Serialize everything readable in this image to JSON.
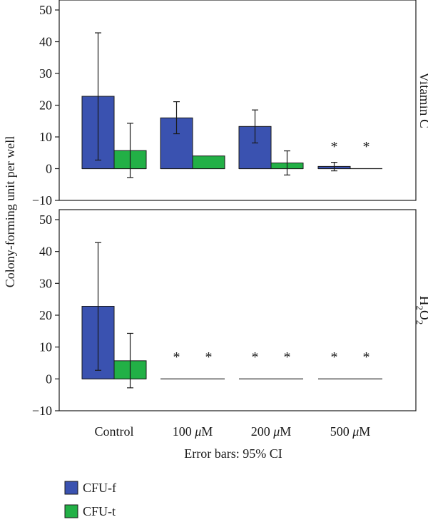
{
  "colors": {
    "cfu_f": "#3a52b0",
    "cfu_t": "#22b046",
    "axis": "#1a1a1a",
    "background": "#ffffff"
  },
  "legend": {
    "placement": "bottom-left",
    "entries": [
      "CFU-f",
      "CFU-t"
    ]
  },
  "chart_data": {
    "type": "bar",
    "ylabel": "Colony-forming unit per well",
    "xlabel": "Error bars: 95% CI",
    "categories": [
      "Control",
      "100 μM",
      "200 μM",
      "500 μM"
    ],
    "ylim": [
      -10,
      50
    ],
    "yticks": [
      -10,
      0,
      10,
      20,
      30,
      40,
      50
    ],
    "panels": [
      {
        "label": "Vitamin C",
        "series": [
          {
            "name": "CFU-f",
            "values": [
              22.8,
              16.0,
              13.3,
              0.7
            ],
            "ci_low": [
              2.7,
              11.0,
              8.1,
              -0.7
            ],
            "ci_high": [
              42.8,
              21.1,
              18.5,
              2.0
            ]
          },
          {
            "name": "CFU-t",
            "values": [
              5.7,
              4.0,
              1.8,
              0.0
            ],
            "ci_low": [
              -2.8,
              null,
              -2.0,
              null
            ],
            "ci_high": [
              14.3,
              null,
              5.6,
              null
            ]
          }
        ],
        "significance": [
          [
            false,
            false
          ],
          [
            false,
            false
          ],
          [
            false,
            false
          ],
          [
            true,
            true
          ]
        ]
      },
      {
        "label": "H2O2",
        "series": [
          {
            "name": "CFU-f",
            "values": [
              22.8,
              0,
              0,
              0
            ],
            "ci_low": [
              2.7,
              null,
              null,
              null
            ],
            "ci_high": [
              42.8,
              null,
              null,
              null
            ]
          },
          {
            "name": "CFU-t",
            "values": [
              5.7,
              0,
              0,
              0
            ],
            "ci_low": [
              -2.8,
              null,
              null,
              null
            ],
            "ci_high": [
              14.3,
              null,
              null,
              null
            ]
          }
        ],
        "significance": [
          [
            false,
            false
          ],
          [
            true,
            true
          ],
          [
            true,
            true
          ],
          [
            true,
            true
          ]
        ]
      }
    ],
    "significance_marker": "*",
    "grid": false
  }
}
